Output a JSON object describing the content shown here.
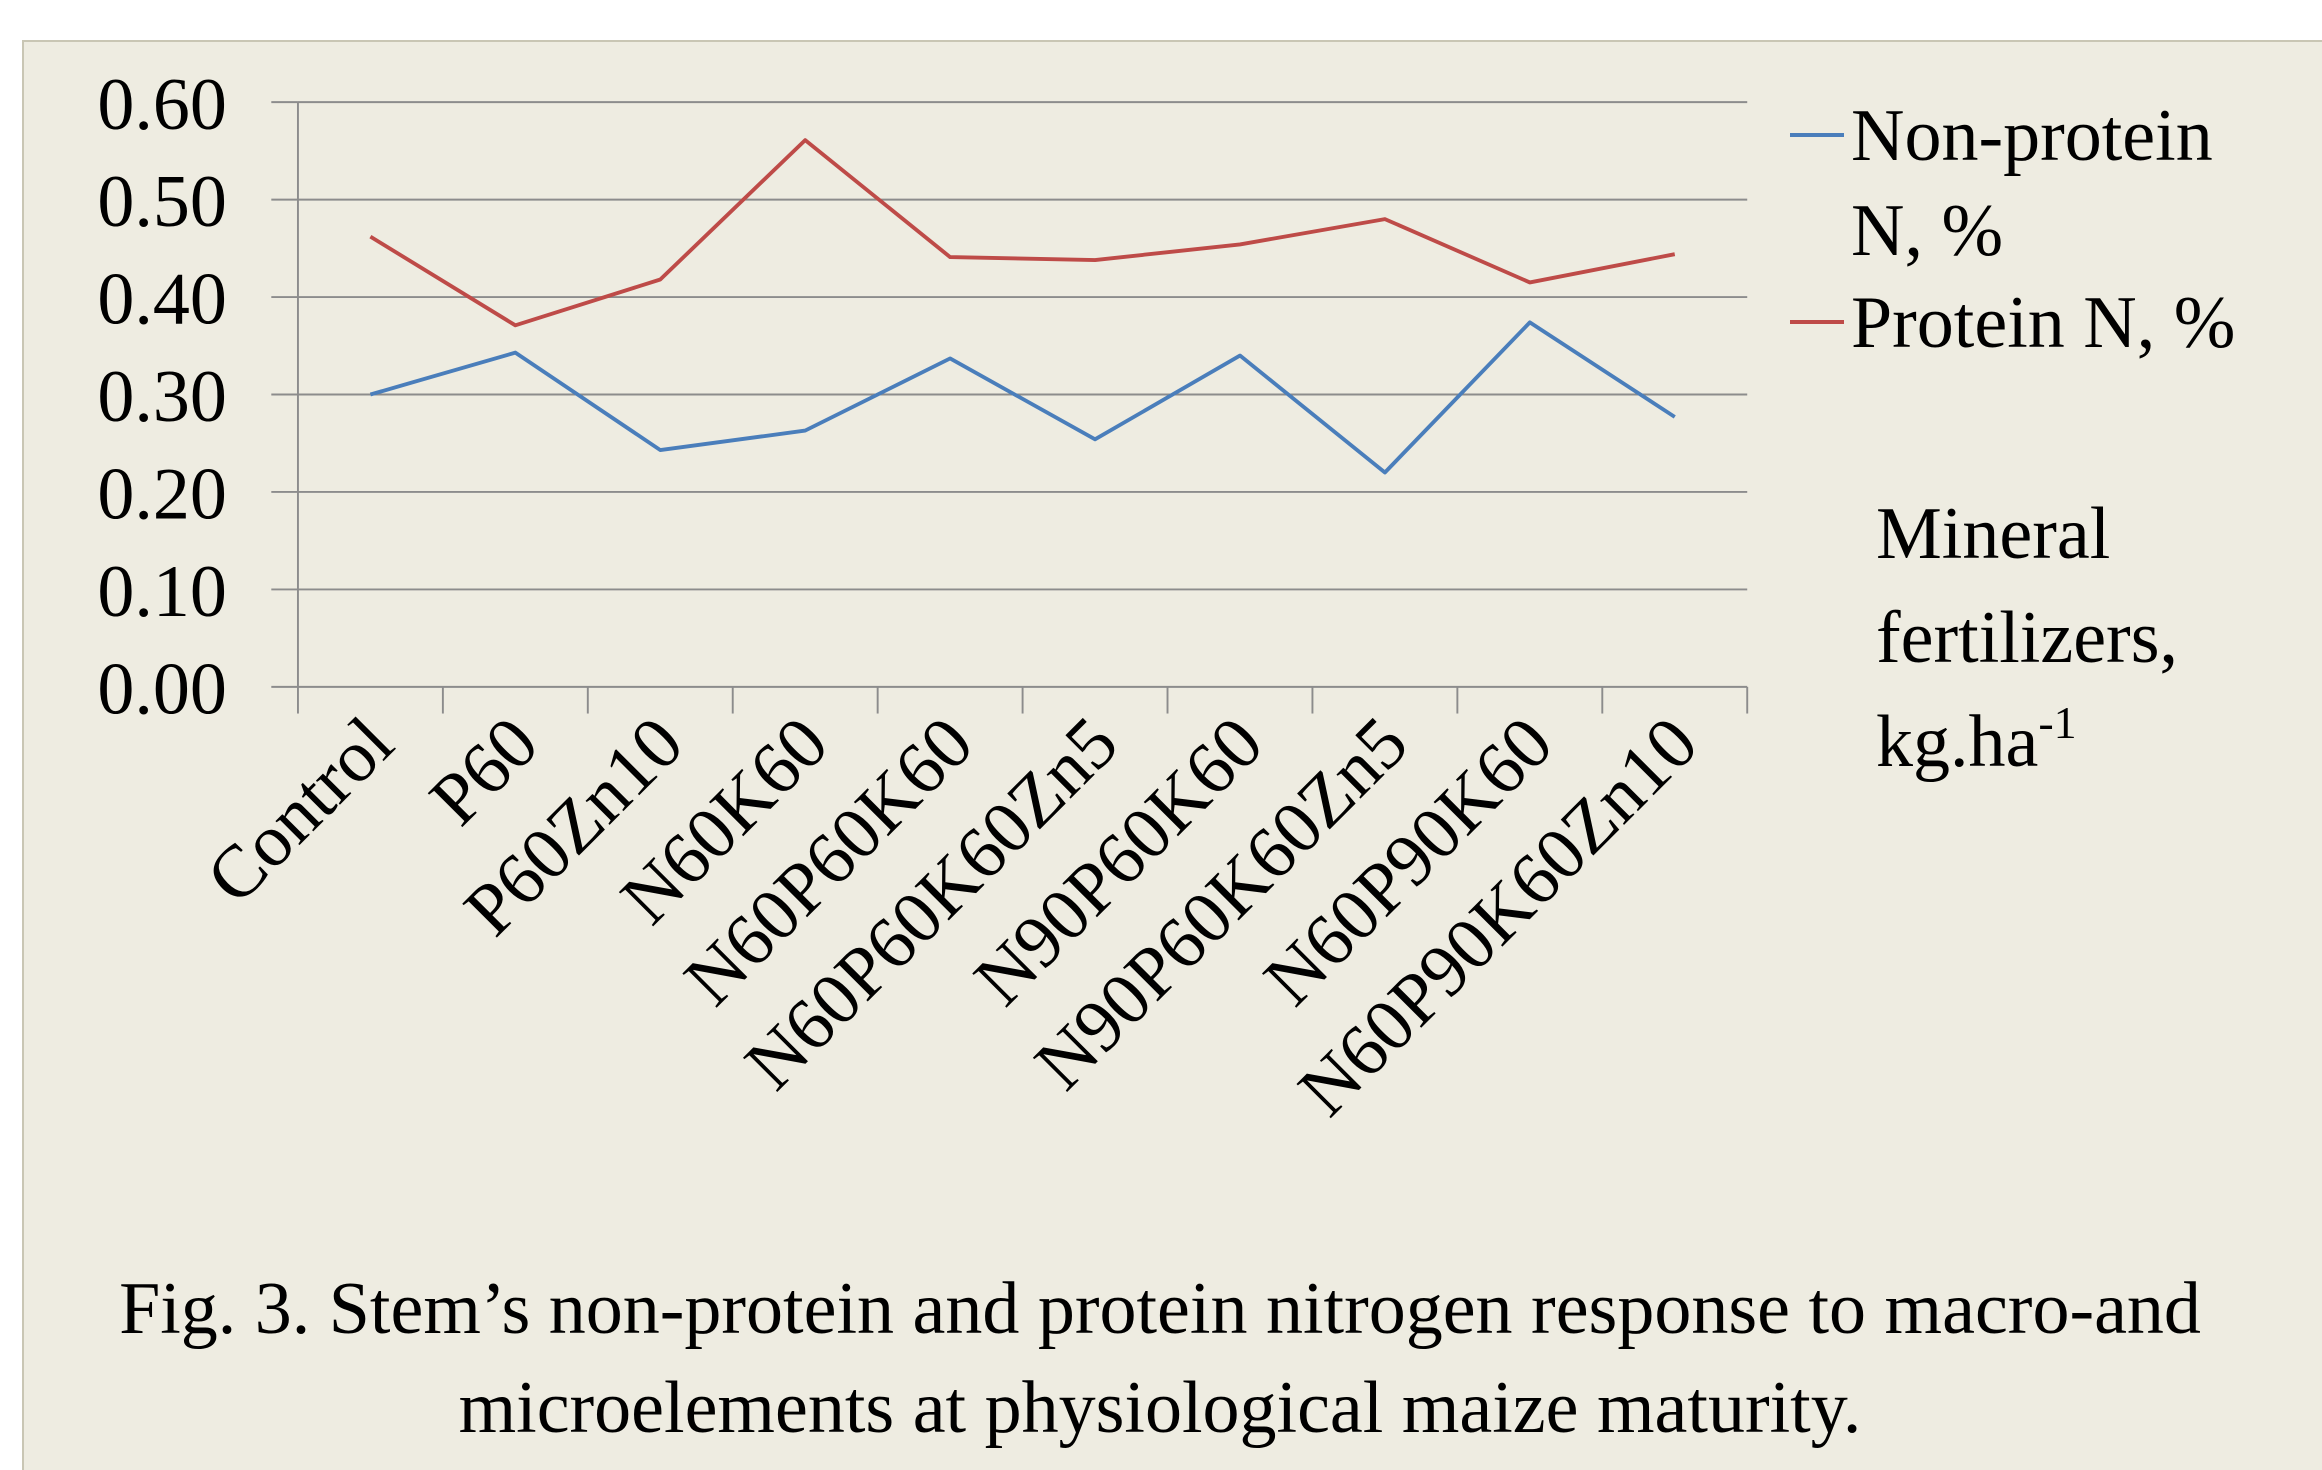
{
  "chart_data": {
    "type": "line",
    "title": "Fig. 3. Stem’s non-protein and protein nitrogen response to macro-and microelements at physiological maize maturity.",
    "annotation": {
      "text": "Mineral fertilizers, kg.ha",
      "superscript": "-1"
    },
    "categories": [
      "Control",
      "P60",
      "P60Zn10",
      "N60K60",
      "N60P60K60",
      "N60P60K60Zn5",
      "N90P60K60",
      "N90P60K60Zn5",
      "N60P90K60",
      "N60P90K60Zn10"
    ],
    "series": [
      {
        "name": "Non-protein N, %",
        "color": "#4a7ebb",
        "values": [
          0.3,
          0.343,
          0.243,
          0.263,
          0.337,
          0.254,
          0.34,
          0.22,
          0.374,
          0.277
        ]
      },
      {
        "name": "Protein N, %",
        "color": "#be4b48",
        "values": [
          0.462,
          0.371,
          0.418,
          0.561,
          0.441,
          0.438,
          0.454,
          0.48,
          0.415,
          0.444
        ]
      }
    ],
    "ylim": [
      0,
      0.6
    ],
    "yticks": [
      {
        "value": 0,
        "label": "0.00"
      },
      {
        "value": 0.1,
        "label": "0.10"
      },
      {
        "value": 0.2,
        "label": "0.20"
      },
      {
        "value": 0.3,
        "label": "0.30"
      },
      {
        "value": 0.4,
        "label": "0.40"
      },
      {
        "value": 0.5,
        "label": "0.50"
      },
      {
        "value": 0.6,
        "label": "0.60"
      }
    ],
    "grid": true,
    "legend": "right"
  }
}
